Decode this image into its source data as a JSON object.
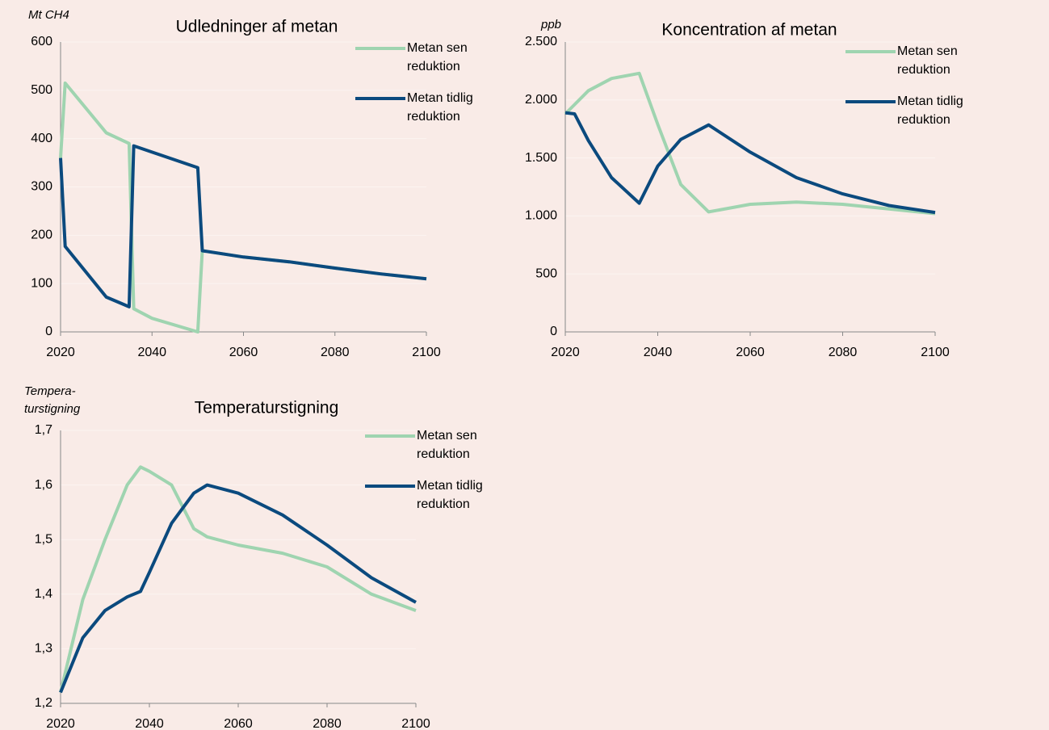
{
  "chart_data": [
    {
      "type": "line",
      "title": "Udledninger af metan",
      "y_label": "Mt CH4",
      "x": [
        2020,
        2021,
        2030,
        2035,
        2036,
        2040,
        2050,
        2051,
        2060,
        2070,
        2080,
        2090,
        2100
      ],
      "xlim": [
        2020,
        2100
      ],
      "xticks": [
        2020,
        2040,
        2060,
        2080,
        2100
      ],
      "ylim": [
        0,
        600
      ],
      "yticks": [
        0,
        100,
        200,
        300,
        400,
        500,
        600
      ],
      "grid": true,
      "series": [
        {
          "name": "Metan sen reduktion",
          "color": "#9fd4b0",
          "values": [
            360,
            515,
            412,
            390,
            48,
            28,
            0,
            168,
            155,
            145,
            132,
            120,
            110
          ]
        },
        {
          "name": "Metan tidlig reduktion",
          "color": "#0b4a7e",
          "values": [
            360,
            177,
            72,
            52,
            385,
            372,
            340,
            168,
            155,
            145,
            132,
            120,
            110
          ]
        }
      ]
    },
    {
      "type": "line",
      "title": "Koncentration af metan",
      "y_label": "ppb",
      "x": [
        2020,
        2022,
        2025,
        2030,
        2036,
        2040,
        2045,
        2051,
        2060,
        2070,
        2080,
        2090,
        2100
      ],
      "xlim": [
        2020,
        2100
      ],
      "xticks": [
        2020,
        2040,
        2060,
        2080,
        2100
      ],
      "ylim": [
        0,
        2500
      ],
      "yticks": [
        0,
        500,
        {
          "value": 1000,
          "label": "1.000"
        },
        {
          "value": 1500,
          "label": "1.500"
        },
        {
          "value": 2000,
          "label": "2.000"
        },
        {
          "value": 2500,
          "label": "2.500"
        }
      ],
      "grid": true,
      "series": [
        {
          "name": "Metan sen reduktion",
          "color": "#9fd4b0",
          "values": [
            1880,
            1960,
            2080,
            2185,
            2230,
            1790,
            1270,
            1035,
            1100,
            1120,
            1100,
            1060,
            1020
          ]
        },
        {
          "name": "Metan tidlig reduktion",
          "color": "#0b4a7e",
          "values": [
            1890,
            1880,
            1650,
            1330,
            1110,
            1430,
            1660,
            1785,
            1550,
            1330,
            1190,
            1090,
            1030
          ]
        }
      ]
    },
    {
      "type": "line",
      "title": "Temperaturstigning",
      "y_label": "Tempera-\nturstigning",
      "x": [
        2020,
        2025,
        2030,
        2035,
        2038,
        2040,
        2045,
        2050,
        2053,
        2060,
        2070,
        2080,
        2090,
        2100
      ],
      "xlim": [
        2020,
        2100
      ],
      "xticks": [
        2020,
        2040,
        2060,
        2080,
        2100
      ],
      "ylim": [
        1.2,
        1.7
      ],
      "yticks": [
        {
          "value": 1.2,
          "label": "1,2"
        },
        {
          "value": 1.3,
          "label": "1,3"
        },
        {
          "value": 1.4,
          "label": "1,4"
        },
        {
          "value": 1.5,
          "label": "1,5"
        },
        {
          "value": 1.6,
          "label": "1,6"
        },
        {
          "value": 1.7,
          "label": "1,7"
        }
      ],
      "grid": true,
      "series": [
        {
          "name": "Metan sen reduktion",
          "color": "#9fd4b0",
          "values": [
            1.22,
            1.39,
            1.5,
            1.6,
            1.633,
            1.625,
            1.6,
            1.52,
            1.505,
            1.49,
            1.475,
            1.45,
            1.4,
            1.37
          ]
        },
        {
          "name": "Metan tidlig reduktion",
          "color": "#0b4a7e",
          "values": [
            1.22,
            1.32,
            1.37,
            1.395,
            1.405,
            1.44,
            1.53,
            1.585,
            1.6,
            1.585,
            1.545,
            1.49,
            1.43,
            1.385
          ]
        }
      ]
    }
  ]
}
